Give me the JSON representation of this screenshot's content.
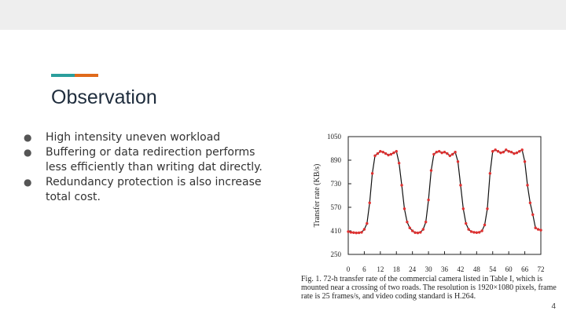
{
  "slide": {
    "title": "Observation",
    "bullets": [
      "High intensity uneven workload",
      "Buffering or data redirection performs less efficiently than writing dat directly.",
      "Redundancy protection is also increase total cost."
    ],
    "bullet_marker": "●",
    "page_number": "4",
    "accent_colors": [
      "#2b9e9c",
      "#e06a1b"
    ]
  },
  "figure": {
    "caption": "Fig. 1.   72-h transfer rate of the commercial camera listed in Table I, which is mounted near a crossing of two roads. The resolution is 1920×1080 pixels, frame rate is 25 frames/s, and video coding standard is H.264."
  },
  "chart_data": {
    "type": "line",
    "title": "",
    "xlabel": "",
    "ylabel": "Transfer rate (KB/s)",
    "xlim": [
      0,
      72
    ],
    "ylim": [
      250,
      1050
    ],
    "xticks": [
      0,
      6,
      12,
      18,
      24,
      30,
      36,
      42,
      48,
      54,
      60,
      66,
      72
    ],
    "yticks": [
      250,
      410,
      570,
      730,
      890,
      1050
    ],
    "grid": false,
    "marker_color": "#e03030",
    "line_color": "#111111",
    "series": [
      {
        "x": [
          0,
          1,
          2,
          3,
          4,
          5,
          6,
          7,
          8,
          9,
          10,
          11,
          12,
          13,
          14,
          15,
          16,
          17,
          18,
          19,
          20,
          21,
          22,
          23,
          24,
          25,
          26,
          27,
          28,
          29,
          30,
          31,
          32,
          33,
          34,
          35,
          36,
          37,
          38,
          39,
          40,
          41,
          42,
          43,
          44,
          45,
          46,
          47,
          48,
          49,
          50,
          51,
          52,
          53,
          54,
          55,
          56,
          57,
          58,
          59,
          60,
          61,
          62,
          63,
          64,
          65,
          66,
          67,
          68,
          69,
          70,
          71,
          72
        ],
        "values": [
          405,
          400,
          398,
          396,
          397,
          400,
          420,
          460,
          600,
          800,
          920,
          935,
          950,
          945,
          935,
          925,
          930,
          940,
          950,
          870,
          720,
          560,
          470,
          430,
          410,
          398,
          396,
          400,
          420,
          470,
          620,
          820,
          930,
          945,
          950,
          940,
          945,
          935,
          920,
          930,
          945,
          880,
          720,
          560,
          460,
          420,
          405,
          400,
          398,
          400,
          410,
          450,
          560,
          800,
          950,
          960,
          950,
          940,
          945,
          960,
          950,
          945,
          935,
          940,
          950,
          960,
          880,
          720,
          600,
          520,
          430,
          420,
          415
        ]
      }
    ]
  }
}
